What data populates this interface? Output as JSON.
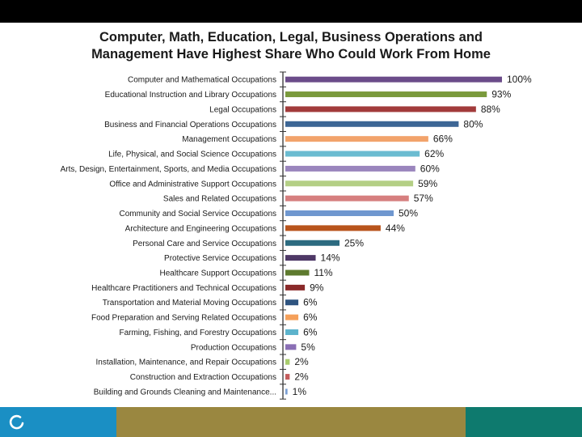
{
  "chart_data": {
    "type": "bar",
    "orientation": "horizontal",
    "title_line1": "Computer, Math, Education, Legal, Business Operations and",
    "title_line2": "Management Have Highest Share Who Could Work From Home",
    "categories": [
      "Computer and Mathematical Occupations",
      "Educational Instruction and Library Occupations",
      "Legal Occupations",
      "Business and Financial Operations Occupations",
      "Management Occupations",
      "Life, Physical, and Social Science Occupations",
      "Arts, Design, Entertainment, Sports, and Media Occupations",
      "Office and Administrative Support Occupations",
      "Sales and Related Occupations",
      "Community and Social Service Occupations",
      "Architecture and Engineering Occupations",
      "Personal Care and Service Occupations",
      "Protective Service Occupations",
      "Healthcare Support Occupations",
      "Healthcare Practitioners and Technical Occupations",
      "Transportation and Material Moving Occupations",
      "Food Preparation and Serving Related Occupations",
      "Farming, Fishing, and Forestry Occupations",
      "Production Occupations",
      "Installation, Maintenance, and Repair Occupations",
      "Construction and Extraction Occupations",
      "Building and Grounds Cleaning and Maintenance..."
    ],
    "values": [
      100,
      93,
      88,
      80,
      66,
      62,
      60,
      59,
      57,
      50,
      44,
      25,
      14,
      11,
      9,
      6,
      6,
      6,
      5,
      2,
      2,
      1
    ],
    "value_labels": [
      "100%",
      "93%",
      "88%",
      "80%",
      "66%",
      "62%",
      "60%",
      "59%",
      "57%",
      "50%",
      "44%",
      "25%",
      "14%",
      "11%",
      "9%",
      "6%",
      "6%",
      "6%",
      "5%",
      "2%",
      "2%",
      "1%"
    ],
    "colors": [
      "#6b4c8a",
      "#7a9a3c",
      "#a23b3b",
      "#3d6695",
      "#f2a36b",
      "#6bbcd1",
      "#9a85bd",
      "#b4cf85",
      "#d67f7f",
      "#6f97cf",
      "#b8541c",
      "#2c6b80",
      "#4e3866",
      "#5e7a2e",
      "#8a2a2a",
      "#2e5480",
      "#f5a05a",
      "#5cb3cc",
      "#8a6fb5",
      "#a8cc6c",
      "#c45c5c",
      "#7a9fd4"
    ],
    "xlim": [
      0,
      100
    ]
  }
}
